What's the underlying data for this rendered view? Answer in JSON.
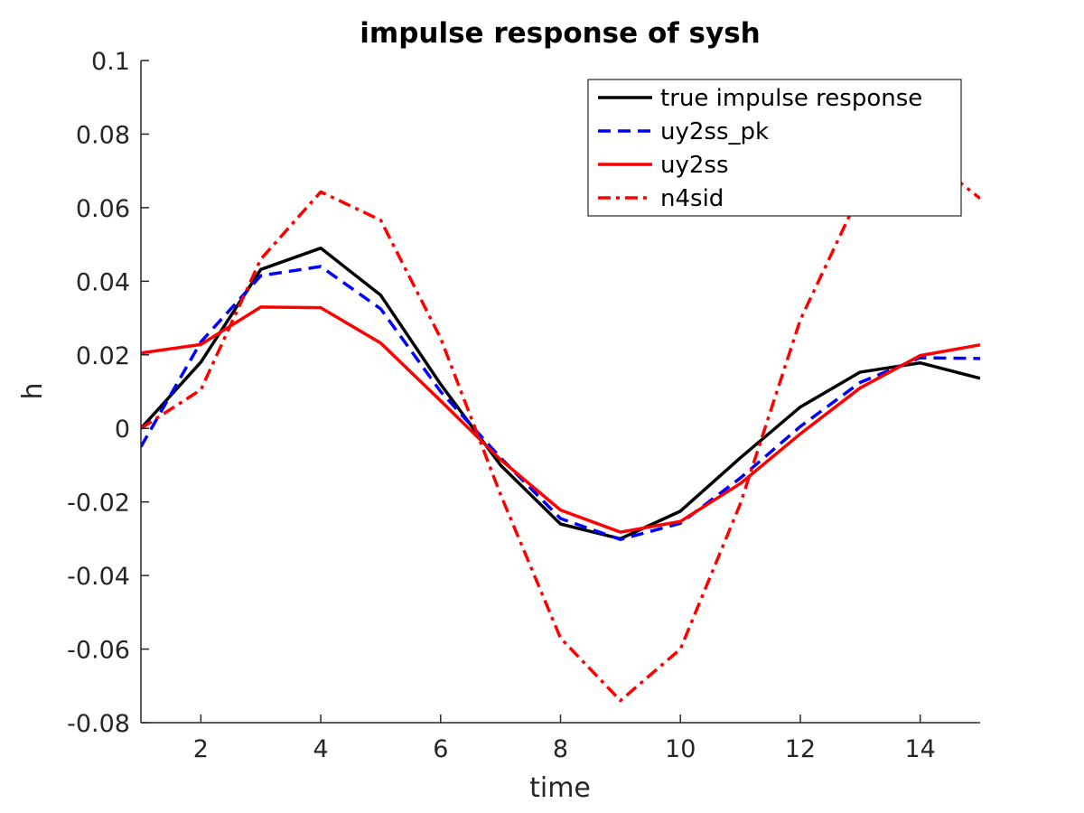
{
  "chart_data": {
    "type": "line",
    "title": "impulse response of sysh",
    "xlabel": "time",
    "ylabel": "h",
    "xlim": [
      1,
      15
    ],
    "ylim": [
      -0.08,
      0.1
    ],
    "xticks": [
      2,
      4,
      6,
      8,
      10,
      12,
      14
    ],
    "xtick_labels": [
      "2",
      "4",
      "6",
      "8",
      "10",
      "12",
      "14"
    ],
    "yticks": [
      -0.08,
      -0.06,
      -0.04,
      -0.02,
      0,
      0.02,
      0.04,
      0.06,
      0.08,
      0.1
    ],
    "ytick_labels": [
      "-0.08",
      "-0.06",
      "-0.04",
      "-0.02",
      "0",
      "0.02",
      "0.04",
      "0.06",
      "0.08",
      "0.1"
    ],
    "grid": false,
    "legend_position": "top-right",
    "x": [
      1,
      2,
      3,
      4,
      5,
      6,
      7,
      8,
      9,
      10,
      11,
      12,
      13,
      14,
      15
    ],
    "series": [
      {
        "name": "true impulse response",
        "color": "#000000",
        "dash": "solid",
        "values": [
          0.0,
          0.018,
          0.0432,
          0.049,
          0.0362,
          0.012,
          -0.01,
          -0.026,
          -0.03,
          -0.0225,
          -0.008,
          0.0058,
          0.0153,
          0.0178,
          0.0136
        ]
      },
      {
        "name": "uy2ss_pk",
        "color": "#0000ff",
        "dash": "dashed",
        "values": [
          -0.005,
          0.0235,
          0.0415,
          0.044,
          0.0325,
          0.01,
          -0.008,
          -0.0245,
          -0.0302,
          -0.0258,
          -0.0135,
          0.0005,
          0.0125,
          0.0192,
          0.019
        ]
      },
      {
        "name": "uy2ss",
        "color": "#ff0000",
        "dash": "solid",
        "values": [
          0.0205,
          0.0228,
          0.033,
          0.0328,
          0.0232,
          0.0075,
          -0.0085,
          -0.0222,
          -0.0282,
          -0.0253,
          -0.015,
          -0.0015,
          0.011,
          0.0198,
          0.0227
        ]
      },
      {
        "name": "n4sid",
        "color": "#ff0000",
        "dash": "dashdot",
        "values": [
          0.0,
          0.0105,
          0.046,
          0.0643,
          0.0566,
          0.0245,
          -0.018,
          -0.057,
          -0.074,
          -0.06,
          -0.0205,
          0.0295,
          0.064,
          0.0755,
          0.0625
        ]
      }
    ]
  }
}
